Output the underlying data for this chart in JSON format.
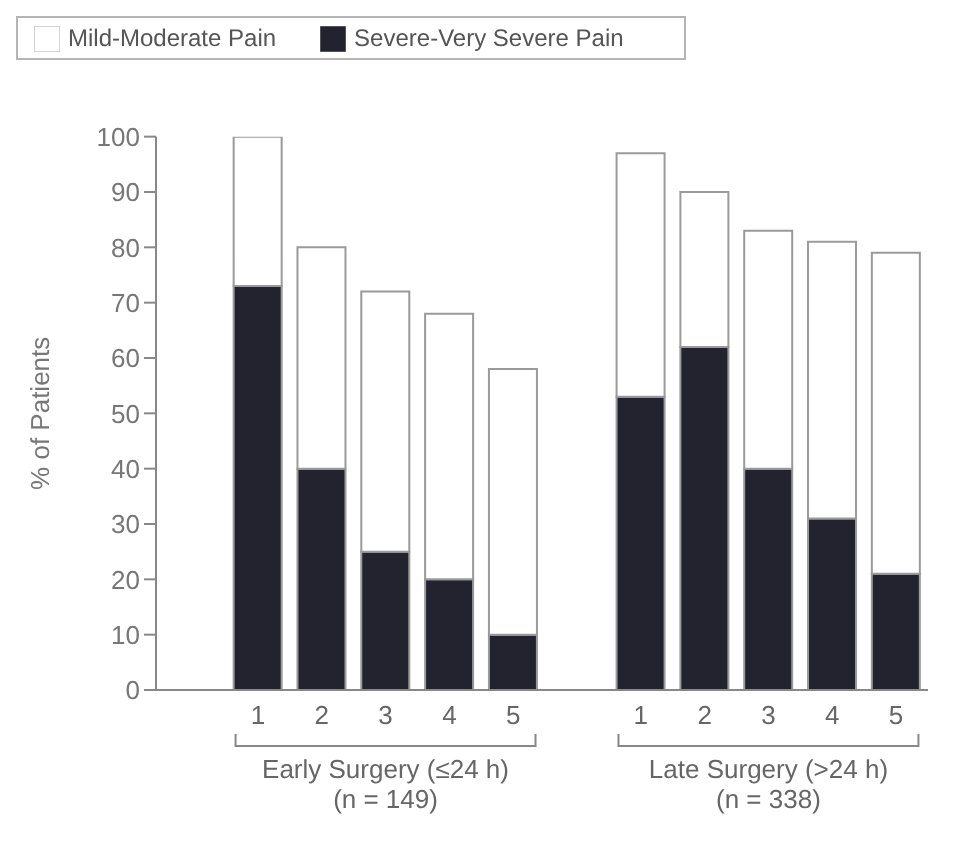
{
  "chart_data": {
    "type": "bar",
    "stacked": true,
    "ylabel": "% of Patients",
    "categories": [
      "1",
      "2",
      "3",
      "4",
      "5",
      null,
      "1",
      "2",
      "3",
      "4",
      "5"
    ],
    "series": [
      {
        "name": "Severe-Very Severe Pain",
        "color": "#23232f",
        "values": [
          73,
          40,
          25,
          20,
          10,
          null,
          53,
          62,
          40,
          31,
          21
        ]
      },
      {
        "name": "Mild-Moderate Pain",
        "color": "#ffffff",
        "values": [
          27,
          40,
          47,
          48,
          48,
          null,
          44,
          28,
          43,
          50,
          58
        ]
      }
    ],
    "ylim": [
      0,
      100
    ],
    "yticks": [
      0,
      10,
      20,
      30,
      40,
      50,
      60,
      70,
      80,
      90,
      100
    ],
    "grid": false,
    "legend": "top left",
    "annotations": [
      "Early Surgery (≤24 h)\n(n = 149)",
      "Late Surgery (>24 h)\n(n = 338)"
    ]
  }
}
